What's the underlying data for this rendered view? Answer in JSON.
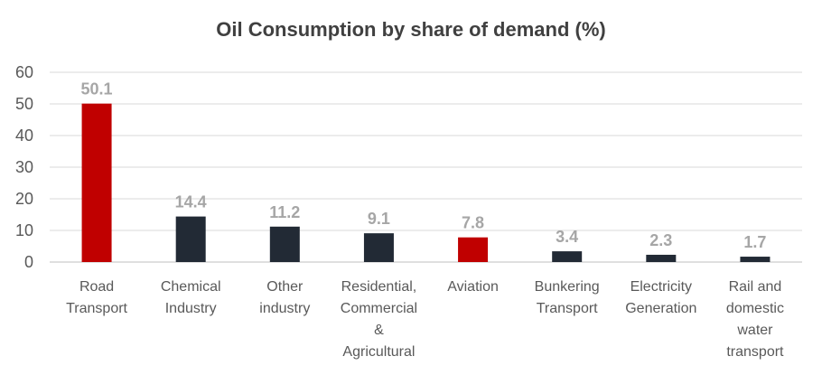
{
  "chart_data": {
    "type": "bar",
    "title": "Oil Consumption by share of demand  (%)",
    "xlabel": "",
    "ylabel": "",
    "ylim": [
      0,
      60
    ],
    "yticks": [
      0,
      10,
      20,
      30,
      40,
      50,
      60
    ],
    "grid": true,
    "legend": "none",
    "categories": [
      "Road Transport",
      "Chemical Industry",
      "Other industry",
      "Residential, Commercial & Agricultural",
      "Aviation",
      "Bunkering Transport",
      "Electricity Generation",
      "Rail and domestic water transport"
    ],
    "category_label_lines": [
      [
        "Road",
        "Transport"
      ],
      [
        "Chemical",
        "Industry"
      ],
      [
        "Other",
        "industry"
      ],
      [
        "Residential,",
        "Commercial",
        "&",
        "Agricultural"
      ],
      [
        "Aviation"
      ],
      [
        "Bunkering",
        "Transport"
      ],
      [
        "Electricity",
        "Generation"
      ],
      [
        "Rail and",
        "domestic",
        "water",
        "transport"
      ]
    ],
    "values": [
      50.1,
      14.4,
      11.2,
      9.1,
      7.8,
      3.4,
      2.3,
      1.7
    ],
    "data_labels": [
      "50.1",
      "14.4",
      "11.2",
      "9.1",
      "7.8",
      "3.4",
      "2.3",
      "1.7"
    ],
    "bar_colors": [
      "#c00000",
      "#222a35",
      "#222a35",
      "#222a35",
      "#c00000",
      "#222a35",
      "#222a35",
      "#222a35"
    ]
  }
}
